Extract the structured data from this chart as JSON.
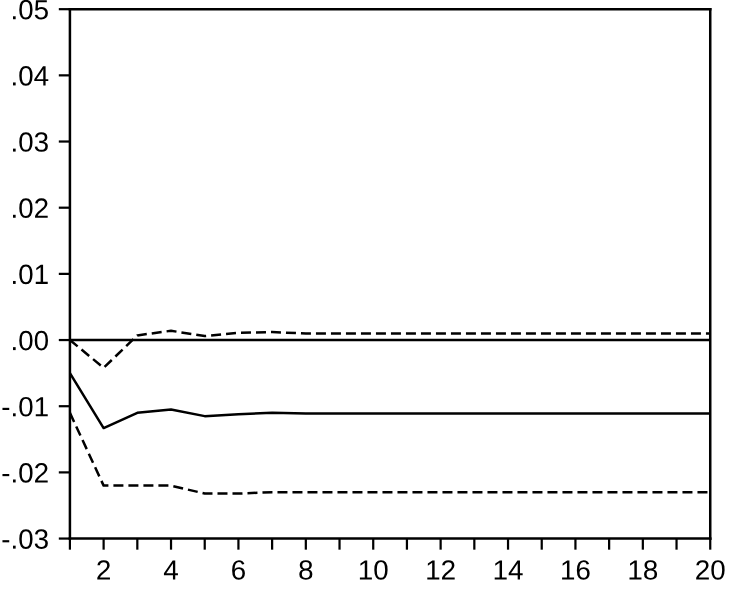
{
  "chart_data": {
    "type": "line",
    "x": [
      1,
      2,
      3,
      4,
      5,
      6,
      7,
      8,
      9,
      10,
      11,
      12,
      13,
      14,
      15,
      16,
      17,
      18,
      19,
      20
    ],
    "series": [
      {
        "color": "#000000",
        "line_style": "solid",
        "values": [
          -0.005,
          -0.0133,
          -0.011,
          -0.0105,
          -0.0115,
          -0.0112,
          -0.011,
          -0.0111,
          -0.0111,
          -0.0111,
          -0.0111,
          -0.0111,
          -0.0111,
          -0.0111,
          -0.0111,
          -0.0111,
          -0.0111,
          -0.0111,
          -0.0111,
          -0.0111
        ]
      },
      {
        "color": "#000000",
        "line_style": "dashed",
        "values": [
          0.0,
          -0.0042,
          0.0007,
          0.0014,
          0.0006,
          0.0011,
          0.0012,
          0.001,
          0.001,
          0.001,
          0.001,
          0.001,
          0.001,
          0.001,
          0.001,
          0.001,
          0.001,
          0.001,
          0.001,
          0.001
        ]
      },
      {
        "color": "#000000",
        "line_style": "dashed",
        "values": [
          -0.011,
          -0.022,
          -0.022,
          -0.022,
          -0.0232,
          -0.0232,
          -0.023,
          -0.023,
          -0.023,
          -0.023,
          -0.023,
          -0.023,
          -0.023,
          -0.023,
          -0.023,
          -0.023,
          -0.023,
          -0.023,
          -0.023,
          -0.023
        ]
      }
    ],
    "xlim": [
      1,
      20
    ],
    "xticks": [
      {
        "value": 1,
        "label": null
      },
      2,
      {
        "value": 3,
        "label": null
      },
      4,
      {
        "value": 5,
        "label": null
      },
      6,
      {
        "value": 7,
        "label": null
      },
      8,
      {
        "value": 9,
        "label": null
      },
      10,
      {
        "value": 11,
        "label": null
      },
      12,
      {
        "value": 13,
        "label": null
      },
      14,
      {
        "value": 15,
        "label": null
      },
      16,
      {
        "value": 17,
        "label": null
      },
      18,
      {
        "value": 19,
        "label": null
      },
      20
    ],
    "ylim": [
      -0.03,
      0.05
    ],
    "yticks": [
      {
        "value": -0.03,
        "label": "-.03"
      },
      {
        "value": -0.02,
        "label": "-.02"
      },
      {
        "value": -0.01,
        "label": "-.01"
      },
      {
        "value": 0,
        "label": ".00"
      },
      {
        "value": 0.01,
        "label": ".01"
      },
      {
        "value": 0.02,
        "label": ".02"
      },
      {
        "value": 0.03,
        "label": ".03"
      },
      {
        "value": 0.04,
        "label": ".04"
      },
      {
        "value": 0.05,
        "label": ".05"
      }
    ],
    "ref_lines": [
      {
        "axis": "y",
        "value": 0,
        "color": "#000000",
        "line_style": "solid"
      }
    ],
    "grid": false,
    "legend": false
  }
}
